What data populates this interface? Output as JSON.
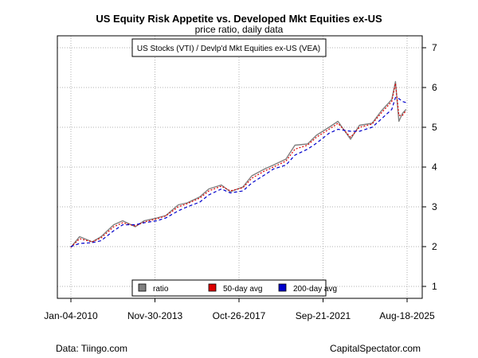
{
  "chart_data": {
    "type": "line",
    "title": "US Equity Risk Appetite vs. Developed Mkt Equities ex-US",
    "subtitle": "price ratio, daily data",
    "annotation": "US Stocks (VTI) / Devlp'd Mkt Equities ex-US (VEA)",
    "x_tick_labels": [
      "Jan-04-2010",
      "Nov-30-2013",
      "Oct-26-2017",
      "Sep-21-2021",
      "Aug-18-2025"
    ],
    "x_range": [
      "2010-01-04",
      "2025-08-18"
    ],
    "y_ticks": [
      1,
      2,
      3,
      4,
      5,
      6,
      7
    ],
    "ylim": [
      0.7,
      7.3
    ],
    "y_axis_side": "right",
    "grid": true,
    "legend_position": "bottom-center",
    "x": [
      "2010-01",
      "2010-06",
      "2011-01",
      "2011-06",
      "2012-01",
      "2012-06",
      "2013-01",
      "2013-06",
      "2014-01",
      "2014-06",
      "2015-01",
      "2015-06",
      "2016-01",
      "2016-06",
      "2017-01",
      "2017-06",
      "2018-01",
      "2018-06",
      "2019-01",
      "2019-06",
      "2020-01",
      "2020-06",
      "2021-01",
      "2021-06",
      "2022-01",
      "2022-06",
      "2023-01",
      "2023-06",
      "2024-01",
      "2024-06",
      "2024-12",
      "2025-02",
      "2025-04",
      "2025-06",
      "2025-08"
    ],
    "series": [
      {
        "name": "ratio",
        "color": "#808080",
        "values": [
          1.98,
          2.25,
          2.12,
          2.25,
          2.55,
          2.65,
          2.5,
          2.65,
          2.72,
          2.78,
          3.05,
          3.1,
          3.25,
          3.45,
          3.55,
          3.38,
          3.5,
          3.78,
          3.95,
          4.05,
          4.2,
          4.55,
          4.58,
          4.8,
          5.0,
          5.15,
          4.7,
          5.05,
          5.1,
          5.4,
          5.7,
          6.15,
          5.15,
          5.35,
          5.45
        ]
      },
      {
        "name": "50-day avg",
        "color": "#dd0000",
        "values": [
          1.98,
          2.2,
          2.12,
          2.22,
          2.5,
          2.6,
          2.52,
          2.62,
          2.7,
          2.77,
          3.0,
          3.08,
          3.22,
          3.4,
          3.52,
          3.4,
          3.48,
          3.72,
          3.9,
          4.0,
          4.15,
          4.45,
          4.55,
          4.75,
          4.95,
          5.1,
          4.75,
          5.0,
          5.08,
          5.35,
          5.65,
          6.1,
          5.3,
          5.3,
          5.42
        ]
      },
      {
        "name": "200-day avg",
        "color": "#0000cc",
        "values": [
          2.0,
          2.08,
          2.1,
          2.15,
          2.4,
          2.55,
          2.55,
          2.6,
          2.65,
          2.72,
          2.9,
          3.0,
          3.12,
          3.3,
          3.45,
          3.35,
          3.4,
          3.6,
          3.8,
          3.95,
          4.05,
          4.3,
          4.45,
          4.6,
          4.85,
          4.95,
          4.9,
          4.9,
          5.0,
          5.2,
          5.45,
          5.75,
          5.72,
          5.65,
          5.62
        ]
      }
    ]
  },
  "footer": {
    "source": "Data: Tiingo.com",
    "credit": "CapitalSpectator.com"
  }
}
